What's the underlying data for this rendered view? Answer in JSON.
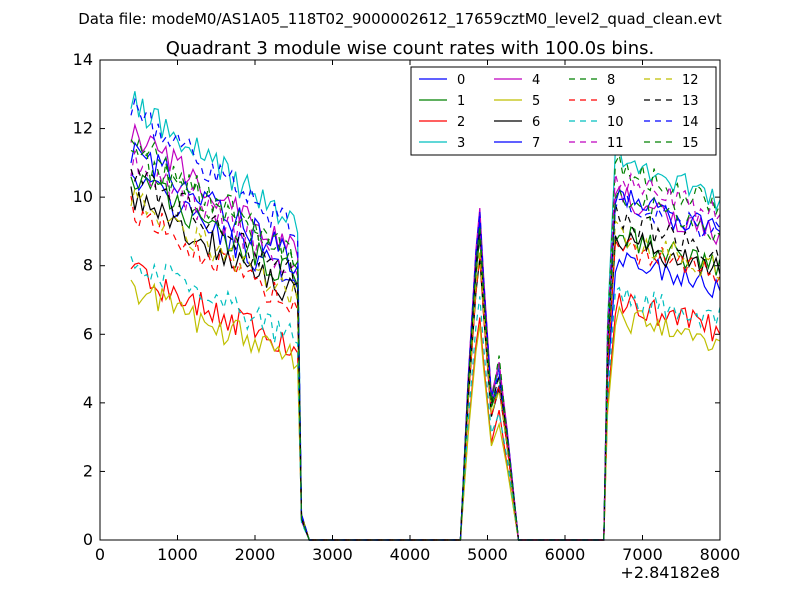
{
  "supertitle": "Data file: modeM0/AS1A05_118T02_9000002612_17659cztM0_level2_quad_clean.evt",
  "chart_data": {
    "type": "line",
    "title": "Quadrant 3 module wise count rates with 100.0s bins.",
    "xlabel": "",
    "ylabel": "",
    "xlim": [
      0,
      8000
    ],
    "ylim": [
      0,
      14
    ],
    "x_offset_label": "+2.84182e8",
    "xticks": [
      0,
      1000,
      2000,
      3000,
      4000,
      5000,
      6000,
      7000,
      8000
    ],
    "yticks": [
      0,
      2,
      4,
      6,
      8,
      10,
      12,
      14
    ],
    "grid": false,
    "legend": {
      "position": "top-right",
      "columns": 4
    },
    "segments": [
      {
        "start": 400,
        "end": 2500
      },
      {
        "start": 4700,
        "end": 5400
      },
      {
        "start": 6500,
        "end": 8000
      }
    ],
    "series": [
      {
        "name": "0",
        "color": "#0000ff",
        "dash": "solid",
        "levels": [
          10.5,
          9.2,
          7.8
        ]
      },
      {
        "name": "1",
        "color": "#008000",
        "dash": "solid",
        "levels": [
          10.6,
          8.6,
          8.5
        ]
      },
      {
        "name": "2",
        "color": "#ff0000",
        "dash": "solid",
        "levels": [
          7.8,
          6.3,
          6.6
        ]
      },
      {
        "name": "3",
        "color": "#00bfbf",
        "dash": "solid",
        "levels": [
          12.8,
          8.9,
          10.6
        ]
      },
      {
        "name": "4",
        "color": "#bf00bf",
        "dash": "solid",
        "levels": [
          11.8,
          9.4,
          9.6
        ]
      },
      {
        "name": "5",
        "color": "#bfbf00",
        "dash": "solid",
        "levels": [
          7.3,
          6.1,
          6.2
        ]
      },
      {
        "name": "6",
        "color": "#000000",
        "dash": "solid",
        "levels": [
          10.0,
          8.0,
          8.4
        ]
      },
      {
        "name": "7",
        "color": "#0000ff",
        "dash": "solid",
        "levels": [
          11.4,
          9.0,
          9.6
        ]
      },
      {
        "name": "8",
        "color": "#008000",
        "dash": "dashed",
        "levels": [
          11.6,
          8.6,
          10.4
        ]
      },
      {
        "name": "9",
        "color": "#ff0000",
        "dash": "dashed",
        "levels": [
          9.6,
          8.0,
          8.2
        ]
      },
      {
        "name": "10",
        "color": "#00bfbf",
        "dash": "dashed",
        "levels": [
          8.2,
          6.9,
          6.9
        ]
      },
      {
        "name": "11",
        "color": "#bf00bf",
        "dash": "dashed",
        "levels": [
          11.0,
          8.8,
          10.1
        ]
      },
      {
        "name": "12",
        "color": "#bfbf00",
        "dash": "dashed",
        "levels": [
          9.9,
          8.2,
          8.5
        ]
      },
      {
        "name": "13",
        "color": "#000000",
        "dash": "dashed",
        "levels": [
          10.7,
          8.8,
          9.0
        ]
      },
      {
        "name": "14",
        "color": "#0000ff",
        "dash": "dashed",
        "levels": [
          12.5,
          9.3,
          9.6
        ]
      },
      {
        "name": "15",
        "color": "#008000",
        "dash": "dashed",
        "levels": [
          11.3,
          8.9,
          9.6
        ]
      }
    ]
  }
}
